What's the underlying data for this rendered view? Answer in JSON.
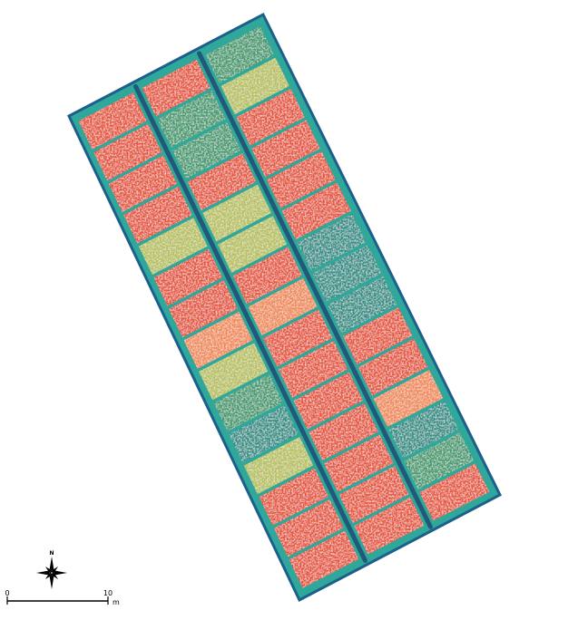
{
  "map": {
    "north_label": "N",
    "scale_bar": {
      "start_label": "0",
      "end_label": "10",
      "unit_label": "m"
    },
    "colors": {
      "background": "#ffffff",
      "field_base": "#2fa79a",
      "field_edge": "#1c5f8a",
      "path_dark": "#1f4d73",
      "plot_orange": "#e5553a",
      "plot_light_orange": "#ef8a54",
      "plot_yellow_green": "#b7bf5a",
      "plot_green": "#3f9a6e",
      "plot_teal": "#2c8f86"
    },
    "columns": [
      {
        "name": "left",
        "plots": [
          "orange",
          "orange",
          "orange",
          "orange",
          "yellow_green",
          "orange",
          "orange",
          "light_orange",
          "yellow_green",
          "green",
          "teal",
          "yellow_green",
          "orange",
          "orange",
          "orange"
        ]
      },
      {
        "name": "middle",
        "plots": [
          "orange",
          "green",
          "green",
          "orange",
          "yellow_green",
          "yellow_green",
          "orange",
          "light_orange",
          "orange",
          "orange",
          "orange",
          "orange",
          "orange",
          "orange",
          "orange"
        ]
      },
      {
        "name": "right",
        "plots": [
          "green",
          "yellow_green",
          "orange",
          "orange",
          "orange",
          "orange",
          "teal",
          "teal",
          "teal",
          "orange",
          "orange",
          "light_orange",
          "teal",
          "green",
          "orange"
        ]
      }
    ]
  }
}
